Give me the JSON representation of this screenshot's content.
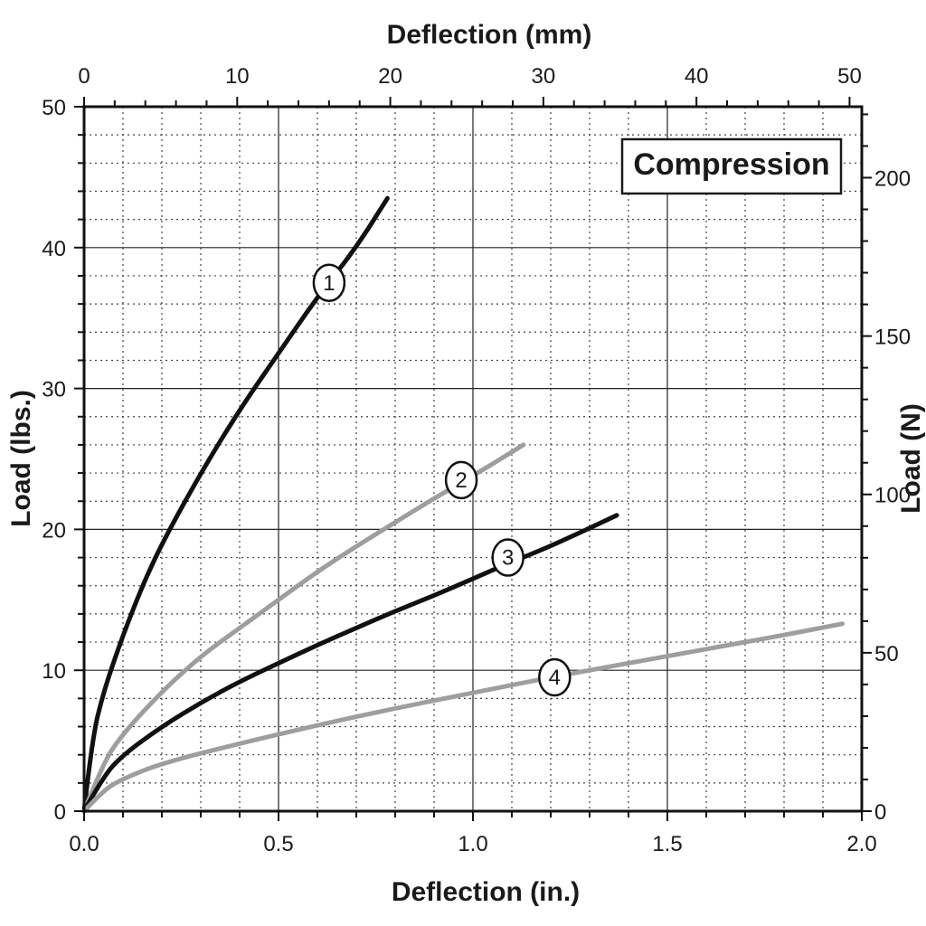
{
  "chart_data": {
    "type": "line",
    "title": "",
    "annotation_box": "Compression",
    "xlabel_bottom": "Deflection (in.)",
    "xlabel_top": "Deflection (mm)",
    "ylabel_left": "Load (lbs.)",
    "ylabel_right": "Load (N)",
    "xlim": [
      0.0,
      2.0
    ],
    "ylim": [
      0,
      50
    ],
    "x_ticks_bottom": [
      "0.0",
      "0.5",
      "1.0",
      "1.5",
      "2.0"
    ],
    "x_ticks_top": [
      "0",
      "10",
      "20",
      "30",
      "40",
      "50"
    ],
    "y_ticks_left": [
      "0",
      "10",
      "20",
      "30",
      "40",
      "50"
    ],
    "y_ticks_right": [
      "0",
      "50",
      "100",
      "150",
      "200"
    ],
    "grid": true,
    "colors": {
      "black_series": "#111111",
      "gray_series": "#9e9e9e",
      "grid_major": "#222222",
      "grid_minor": "#444444"
    },
    "series": [
      {
        "name": "1",
        "color": "black",
        "x": [
          0.0,
          0.02,
          0.05,
          0.1,
          0.15,
          0.2,
          0.3,
          0.4,
          0.5,
          0.6,
          0.7,
          0.78
        ],
        "y": [
          0.0,
          5.0,
          8.5,
          12.5,
          16.0,
          19.0,
          24.0,
          28.5,
          32.5,
          36.5,
          40.0,
          43.5
        ]
      },
      {
        "name": "2",
        "color": "gray",
        "x": [
          0.0,
          0.05,
          0.1,
          0.2,
          0.3,
          0.4,
          0.5,
          0.6,
          0.7,
          0.8,
          0.9,
          1.0,
          1.13
        ],
        "y": [
          0.0,
          3.5,
          5.5,
          8.5,
          11.0,
          13.0,
          15.0,
          17.0,
          18.8,
          20.5,
          22.2,
          23.8,
          26.0
        ]
      },
      {
        "name": "3",
        "color": "black",
        "x": [
          0.0,
          0.05,
          0.1,
          0.2,
          0.3,
          0.4,
          0.5,
          0.6,
          0.7,
          0.8,
          0.9,
          1.0,
          1.1,
          1.2,
          1.37
        ],
        "y": [
          0.0,
          2.5,
          4.0,
          6.0,
          7.7,
          9.2,
          10.5,
          11.8,
          13.0,
          14.2,
          15.3,
          16.5,
          17.7,
          18.8,
          21.0
        ]
      },
      {
        "name": "4",
        "color": "gray",
        "x": [
          0.0,
          0.05,
          0.1,
          0.2,
          0.4,
          0.6,
          0.8,
          1.0,
          1.2,
          1.4,
          1.6,
          1.8,
          1.95
        ],
        "y": [
          0.0,
          1.5,
          2.3,
          3.4,
          4.8,
          6.1,
          7.3,
          8.4,
          9.5,
          10.5,
          11.5,
          12.5,
          13.3
        ]
      }
    ],
    "callouts": [
      {
        "label": "1",
        "x": 0.63,
        "y": 37.5
      },
      {
        "label": "2",
        "x": 0.97,
        "y": 23.5
      },
      {
        "label": "3",
        "x": 1.09,
        "y": 18.0
      },
      {
        "label": "4",
        "x": 1.21,
        "y": 9.5
      }
    ]
  }
}
